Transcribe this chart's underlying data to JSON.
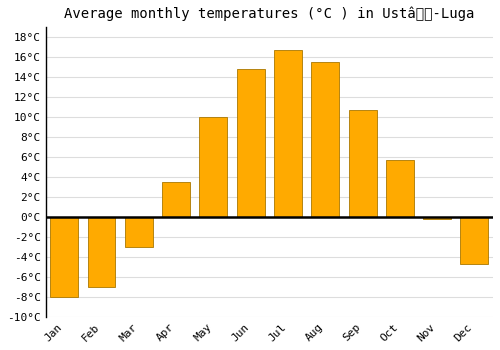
{
  "title": "Average monthly temperatures (°C ) in Ustâ-Luga",
  "months": [
    "Jan",
    "Feb",
    "Mar",
    "Apr",
    "May",
    "Jun",
    "Jul",
    "Aug",
    "Sep",
    "Oct",
    "Nov",
    "Dec"
  ],
  "values": [
    -8.0,
    -7.0,
    -3.0,
    3.5,
    10.0,
    14.8,
    16.7,
    15.5,
    10.7,
    5.7,
    -0.2,
    -4.7
  ],
  "bar_color": "#FFAA00",
  "bar_edge_color": "#AA7700",
  "ylim": [
    -10,
    19
  ],
  "yticks": [
    -10,
    -8,
    -6,
    -4,
    -2,
    0,
    2,
    4,
    6,
    8,
    10,
    12,
    14,
    16,
    18
  ],
  "ytick_labels": [
    "-10°C",
    "-8°C",
    "-6°C",
    "-4°C",
    "-2°C",
    "0°C",
    "2°C",
    "4°C",
    "6°C",
    "8°C",
    "10°C",
    "12°C",
    "14°C",
    "16°C",
    "18°C"
  ],
  "background_color": "#ffffff",
  "grid_color": "#dddddd",
  "title_fontsize": 10,
  "tick_fontsize": 8,
  "bar_width": 0.75
}
